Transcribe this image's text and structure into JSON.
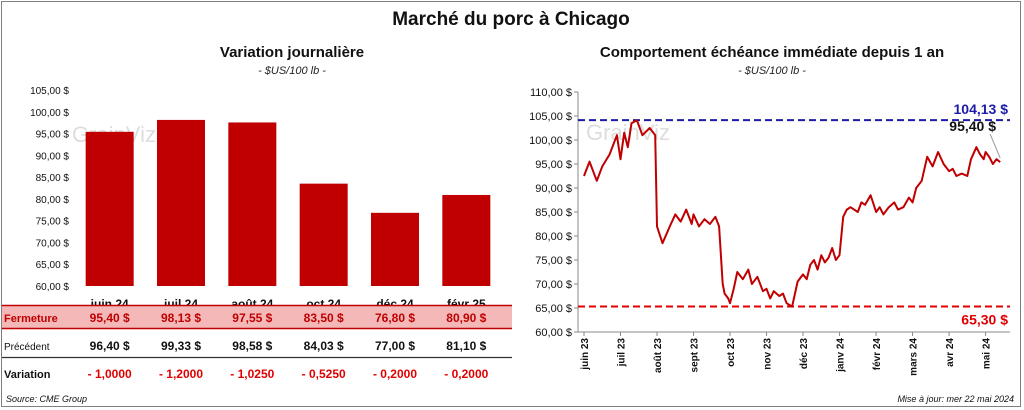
{
  "page": {
    "title": "Marché du porc à Chicago",
    "source": "Source: CME Group",
    "updated": "Mise à jour: mer 22 mai 2024",
    "watermark": "GrainViz"
  },
  "colors": {
    "bar": "#c00000",
    "line": "#c00000",
    "high": "#1c1ca8",
    "low": "#e00000",
    "rowHighlight": "#f4b8b8"
  },
  "chart_data": [
    {
      "type": "bar",
      "title": "Variation journalière",
      "subtitle": "- $US/100 lb -",
      "categories": [
        "juin 24",
        "juil 24",
        "août 24",
        "oct 24",
        "déc 24",
        "févr 25"
      ],
      "values": [
        95.4,
        98.13,
        97.55,
        83.5,
        76.8,
        80.9
      ],
      "ylim": [
        60,
        105
      ],
      "yticks": [
        "60,00 $",
        "65,00 $",
        "70,00 $",
        "75,00 $",
        "80,00 $",
        "85,00 $",
        "90,00 $",
        "95,00 $",
        "100,00 $",
        "105,00 $"
      ],
      "table": {
        "rows": [
          {
            "label": "Fermeture",
            "cells": [
              "95,40  $",
              "98,13  $",
              "97,55  $",
              "83,50  $",
              "76,80  $",
              "80,90  $"
            ]
          },
          {
            "label": "Précédent",
            "cells": [
              "96,40  $",
              "99,33  $",
              "98,58  $",
              "84,03  $",
              "77,00  $",
              "81,10  $"
            ]
          },
          {
            "label": "Variation",
            "cells": [
              "- 1,0000",
              "- 1,2000",
              "- 1,0250",
              "- 0,5250",
              "- 0,2000",
              "- 0,2000"
            ]
          }
        ]
      }
    },
    {
      "type": "line",
      "title": "Comportement  échéance immédiate depuis 1 an",
      "subtitle": "- $US/100 lb -",
      "ylim": [
        60,
        110
      ],
      "yticks": [
        "60,00 $",
        "65,00 $",
        "70,00 $",
        "75,00 $",
        "80,00 $",
        "85,00 $",
        "90,00 $",
        "95,00 $",
        "100,00 $",
        "105,00 $",
        "110,00 $"
      ],
      "xticks": [
        "juin 23",
        "juil 23",
        "août 23",
        "sept 23",
        "oct 23",
        "nov 23",
        "déc 23",
        "janv 24",
        "févr 24",
        "mars 24",
        "avr 24",
        "mai 24"
      ],
      "high": {
        "value": 104.13,
        "label": "104,13 $"
      },
      "low": {
        "value": 65.3,
        "label": "65,30 $"
      },
      "last": {
        "value": 95.4,
        "label": "95,40 $"
      },
      "x": [
        0,
        0.15,
        0.35,
        0.5,
        0.7,
        0.9,
        1.0,
        1.1,
        1.2,
        1.3,
        1.45,
        1.6,
        1.8,
        1.95,
        2.0,
        2.15,
        2.35,
        2.5,
        2.65,
        2.8,
        2.95,
        3.0,
        3.15,
        3.3,
        3.45,
        3.6,
        3.7,
        3.8,
        3.85,
        3.95,
        4.0,
        4.1,
        4.2,
        4.35,
        4.5,
        4.6,
        4.75,
        4.9,
        5.0,
        5.1,
        5.2,
        5.35,
        5.45,
        5.55,
        5.7,
        5.85,
        6.0,
        6.1,
        6.2,
        6.3,
        6.4,
        6.5,
        6.6,
        6.7,
        6.8,
        6.9,
        7.0,
        7.1,
        7.2,
        7.3,
        7.5,
        7.6,
        7.7,
        7.85,
        8.0,
        8.1,
        8.2,
        8.35,
        8.5,
        8.6,
        8.75,
        8.9,
        9.0,
        9.1,
        9.25,
        9.4,
        9.55,
        9.7,
        9.85,
        10.0,
        10.1,
        10.2,
        10.35,
        10.5,
        10.6,
        10.75,
        10.85,
        10.95,
        11.0,
        11.1,
        11.2,
        11.3,
        11.4
      ],
      "values": [
        92.5,
        95.5,
        91.5,
        94.5,
        97.0,
        101.0,
        96.0,
        101.5,
        98.5,
        103.5,
        104.13,
        101.0,
        102.5,
        101.0,
        82.0,
        78.5,
        82.0,
        84.5,
        83.0,
        85.5,
        82.5,
        84.5,
        82.0,
        83.5,
        82.5,
        84.0,
        82.0,
        70.0,
        68.0,
        67.0,
        66.0,
        69.0,
        72.5,
        71.0,
        73.0,
        70.0,
        71.5,
        68.5,
        69.0,
        67.0,
        68.5,
        67.5,
        68.0,
        66.0,
        65.3,
        70.5,
        72.0,
        71.0,
        74.0,
        75.0,
        73.0,
        76.0,
        74.5,
        75.5,
        77.5,
        75.0,
        76.0,
        84.0,
        85.5,
        86.0,
        85.0,
        87.0,
        86.5,
        88.5,
        85.0,
        86.0,
        84.5,
        86.0,
        87.0,
        85.5,
        86.0,
        88.0,
        87.0,
        90.0,
        91.5,
        96.5,
        94.5,
        97.5,
        95.0,
        93.5,
        94.0,
        92.5,
        93.0,
        92.5,
        96.0,
        98.5,
        97.0,
        96.0,
        97.5,
        96.5,
        95.0,
        96.0,
        95.4
      ]
    }
  ]
}
